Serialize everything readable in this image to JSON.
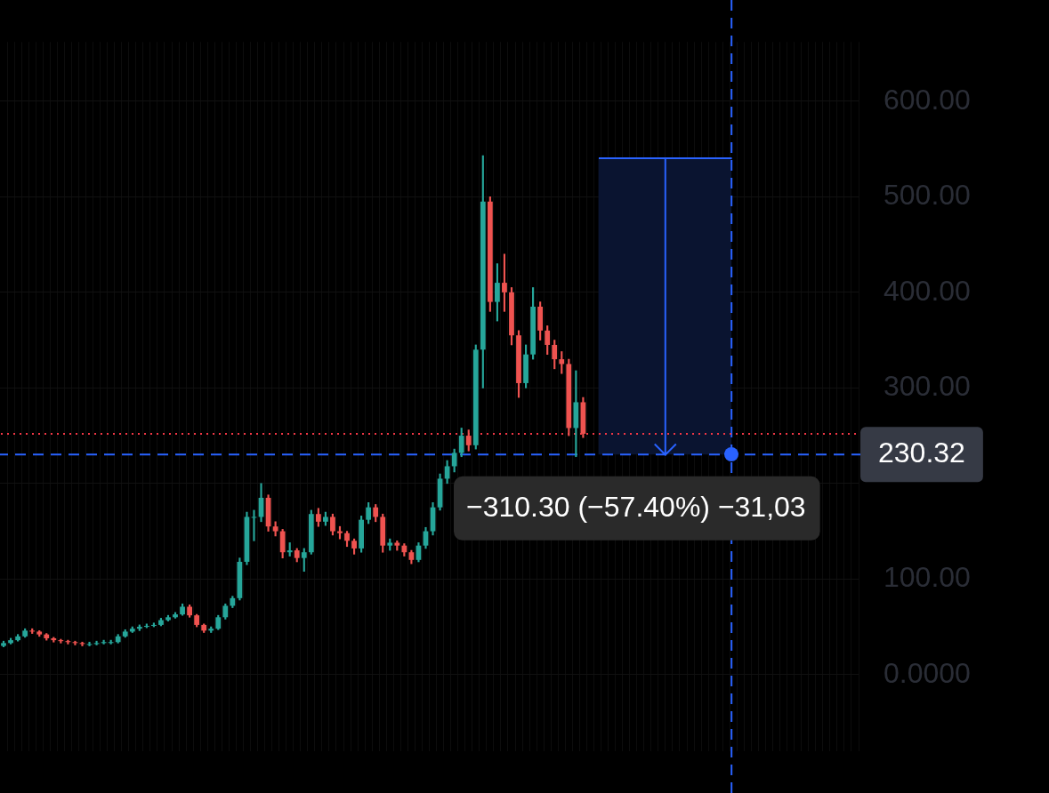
{
  "chart_data": {
    "type": "candlestick",
    "categories": [
      null,
      null,
      null,
      null,
      null,
      null,
      null,
      null,
      null,
      null,
      null,
      null,
      null,
      null,
      null,
      null,
      null,
      null,
      null,
      null,
      null,
      null,
      null,
      null,
      null,
      null,
      null,
      null,
      null,
      null,
      null,
      null,
      null,
      null,
      null,
      null,
      null,
      null,
      null,
      null,
      null,
      null,
      null,
      null,
      null,
      null,
      null,
      null,
      null,
      null,
      null,
      null,
      null,
      null,
      null,
      null,
      null,
      null,
      null,
      null,
      null,
      null,
      null,
      null,
      null,
      null,
      null,
      null,
      null,
      null,
      null,
      null,
      null,
      null,
      null,
      null,
      null,
      null,
      null,
      null,
      null,
      null,
      null,
      null,
      null,
      null,
      null,
      null,
      null,
      null,
      null,
      null,
      null,
      null,
      null,
      null,
      null,
      null,
      null,
      null,
      null,
      null,
      null,
      null,
      null,
      null,
      null,
      null,
      null,
      null,
      null,
      null,
      null,
      null,
      null,
      null,
      null,
      null,
      null,
      null
    ],
    "ohlc": [
      [
        30,
        35,
        29,
        33
      ],
      [
        33,
        38,
        32,
        36
      ],
      [
        36,
        42,
        35,
        40
      ],
      [
        40,
        48,
        39,
        46
      ],
      [
        46,
        48,
        43,
        45
      ],
      [
        45,
        46,
        40,
        42
      ],
      [
        42,
        43,
        36,
        38
      ],
      [
        38,
        39,
        34,
        36
      ],
      [
        36,
        37,
        33,
        35
      ],
      [
        35,
        36,
        32,
        34
      ],
      [
        34,
        35,
        31,
        33
      ],
      [
        33,
        34,
        30,
        32
      ],
      [
        32,
        34,
        30,
        32
      ],
      [
        32,
        35,
        31,
        33
      ],
      [
        33,
        36,
        32,
        34
      ],
      [
        34,
        36,
        32,
        34
      ],
      [
        34,
        42,
        33,
        40
      ],
      [
        40,
        47,
        39,
        45
      ],
      [
        45,
        50,
        44,
        48
      ],
      [
        48,
        52,
        46,
        50
      ],
      [
        50,
        53,
        49,
        51
      ],
      [
        51,
        54,
        50,
        52
      ],
      [
        52,
        59,
        51,
        57
      ],
      [
        57,
        62,
        56,
        60
      ],
      [
        60,
        65,
        59,
        63
      ],
      [
        63,
        74,
        62,
        71
      ],
      [
        71,
        73,
        60,
        62
      ],
      [
        62,
        63,
        50,
        52
      ],
      [
        52,
        53,
        44,
        46
      ],
      [
        46,
        50,
        44,
        48
      ],
      [
        48,
        62,
        47,
        60
      ],
      [
        60,
        74,
        58,
        72
      ],
      [
        72,
        82,
        70,
        80
      ],
      [
        80,
        122,
        78,
        118
      ],
      [
        118,
        170,
        115,
        165
      ],
      [
        165,
        172,
        140,
        165
      ],
      [
        165,
        200,
        160,
        185
      ],
      [
        185,
        188,
        150,
        155
      ],
      [
        155,
        160,
        145,
        150
      ],
      [
        150,
        152,
        122,
        128
      ],
      [
        128,
        138,
        124,
        130
      ],
      [
        130,
        132,
        118,
        122
      ],
      [
        122,
        132,
        108,
        128
      ],
      [
        128,
        172,
        126,
        168
      ],
      [
        168,
        174,
        155,
        160
      ],
      [
        160,
        170,
        156,
        165
      ],
      [
        165,
        168,
        146,
        150
      ],
      [
        150,
        155,
        142,
        148
      ],
      [
        148,
        150,
        134,
        140
      ],
      [
        140,
        142,
        126,
        132
      ],
      [
        132,
        166,
        128,
        162
      ],
      [
        162,
        180,
        158,
        175
      ],
      [
        175,
        178,
        160,
        165
      ],
      [
        165,
        168,
        128,
        135
      ],
      [
        135,
        142,
        130,
        138
      ],
      [
        138,
        140,
        130,
        135
      ],
      [
        135,
        137,
        124,
        128
      ],
      [
        128,
        130,
        116,
        120
      ],
      [
        120,
        138,
        118,
        135
      ],
      [
        135,
        154,
        132,
        150
      ],
      [
        150,
        180,
        146,
        175
      ],
      [
        175,
        210,
        172,
        205
      ],
      [
        205,
        224,
        200,
        218
      ],
      [
        218,
        236,
        212,
        232
      ],
      [
        232,
        258,
        228,
        250
      ],
      [
        250,
        256,
        234,
        240
      ],
      [
        240,
        345,
        236,
        340
      ],
      [
        340,
        543,
        300,
        495
      ],
      [
        495,
        500,
        380,
        390
      ],
      [
        390,
        430,
        370,
        410
      ],
      [
        410,
        440,
        380,
        400
      ],
      [
        400,
        405,
        345,
        355
      ],
      [
        355,
        360,
        290,
        305
      ],
      [
        305,
        345,
        300,
        335
      ],
      [
        335,
        405,
        330,
        385
      ],
      [
        385,
        390,
        350,
        360
      ],
      [
        360,
        365,
        335,
        345
      ],
      [
        345,
        350,
        320,
        330
      ],
      [
        330,
        338,
        315,
        325
      ],
      [
        325,
        330,
        250,
        258
      ],
      [
        258,
        318,
        228,
        285
      ],
      [
        285,
        290,
        248,
        252
      ],
      null,
      null,
      null,
      null,
      null,
      null,
      null,
      null,
      null,
      null,
      null,
      null,
      null,
      null,
      null,
      null,
      null,
      null,
      null,
      null,
      null,
      null,
      null,
      null,
      null,
      null,
      null,
      null,
      null,
      null,
      null,
      null,
      null,
      null,
      null,
      null,
      null,
      null
    ],
    "ylim": [
      -80,
      662
    ],
    "yticks": [
      {
        "value": 0,
        "label": "0.0000"
      },
      {
        "value": 100,
        "label": "100.00"
      },
      {
        "value": 200,
        "label": null
      },
      {
        "value": 300,
        "label": "300.00"
      },
      {
        "value": 400,
        "label": "400.00"
      },
      {
        "value": 500,
        "label": "500.00"
      },
      {
        "value": 600,
        "label": "600.00"
      }
    ],
    "grid": true,
    "ref_lines": [
      {
        "axis": "y",
        "value": 251.9,
        "color": "#f23645",
        "line_style": "dotted"
      },
      {
        "axis": "y",
        "value": 230.32,
        "label": "230.32",
        "color": "#2962ff",
        "line_style": "dashed"
      }
    ],
    "bands": [
      {
        "axis": "y",
        "from": 230.32,
        "to": 540.62,
        "color": "#0a1430"
      }
    ],
    "annotations": [
      "−310.30 (−57.40%) −31,03"
    ]
  }
}
